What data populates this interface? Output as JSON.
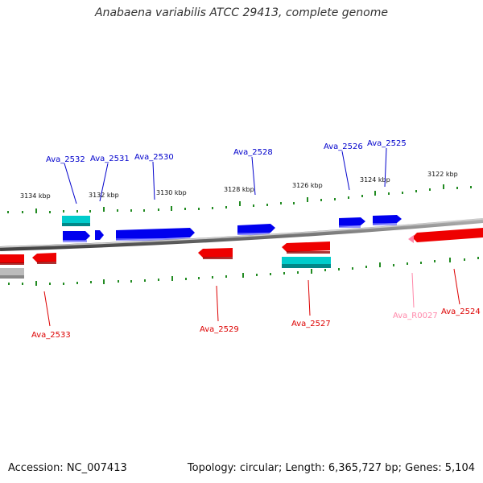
{
  "title": "Anabaena variabilis ATCC 29413, complete genome",
  "footer": {
    "accession": "Accession: NC_007413",
    "topology": "Topology: circular; Length: 6,365,727 bp; Genes: 5,104"
  },
  "scale_labels": [
    "3134 kbp",
    "3132 kbp",
    "3130 kbp",
    "3128 kbp",
    "3126 kbp",
    "3124 kbp",
    "3122 kbp"
  ],
  "gene_labels_top": [
    "Ava_2532",
    "Ava_2531",
    "Ava_2530",
    "Ava_2528",
    "Ava_2526",
    "Ava_2525"
  ],
  "gene_labels_bottom": [
    "Ava_2533",
    "Ava_2529",
    "Ava_2527",
    "Ava_R0027",
    "Ava_2524"
  ],
  "colors": {
    "forward": "#0000dd",
    "reverse": "#dd0000",
    "rna": "#00bbbb",
    "trna": "#ff99bb",
    "tick": "#228b22"
  }
}
